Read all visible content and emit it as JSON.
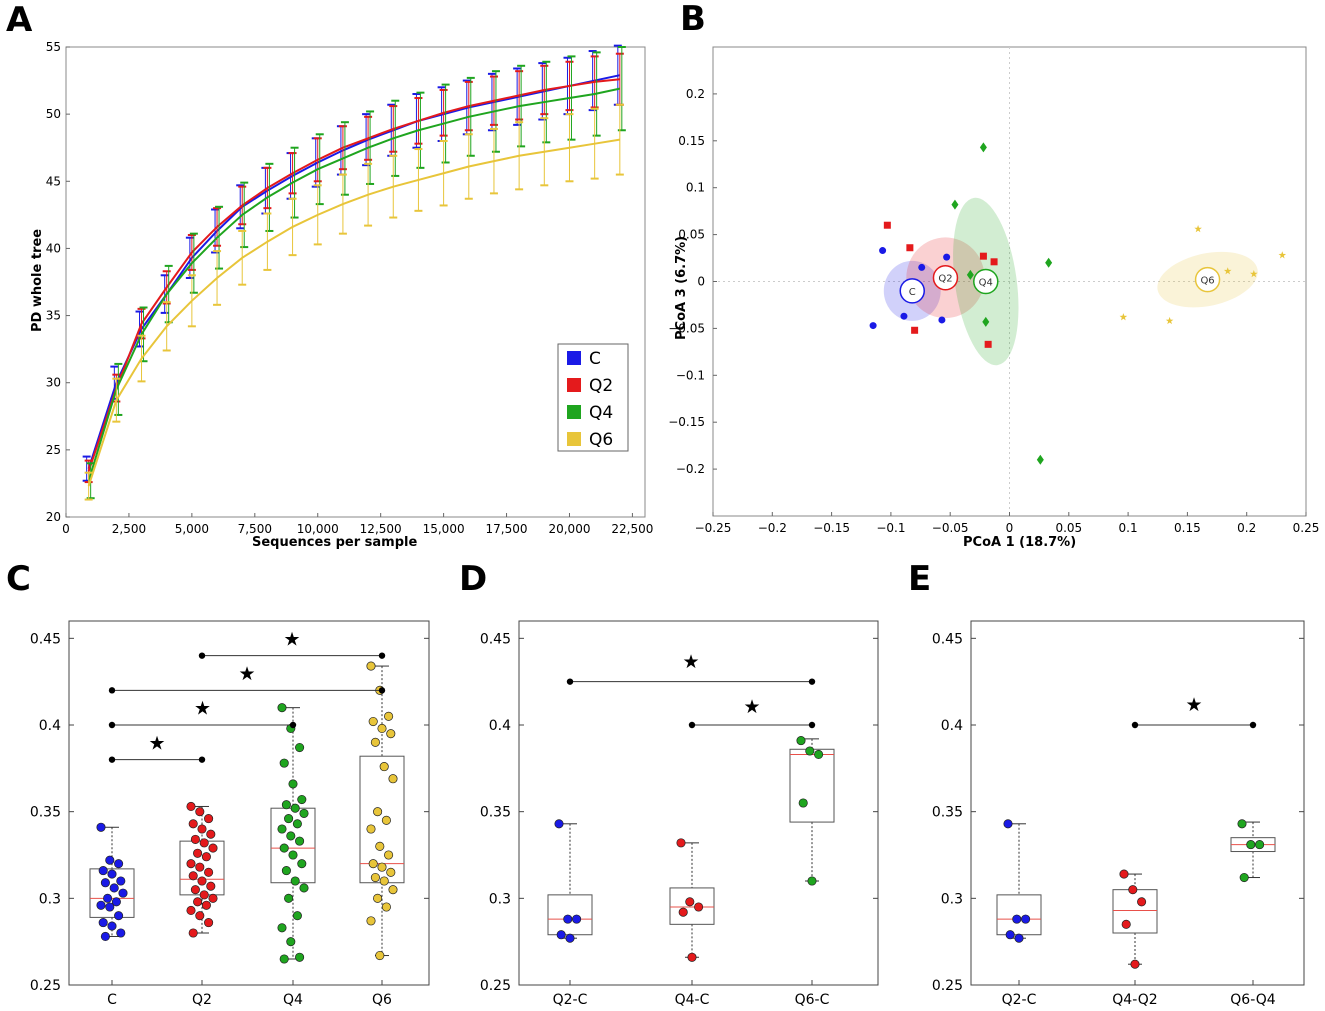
{
  "colors": {
    "C": "#1a1ae6",
    "Q2": "#e41a1c",
    "Q4": "#1fa51f",
    "Q6": "#e8c53a",
    "median": "#e8504a"
  },
  "panels": {
    "A": {
      "letter": "A",
      "chart_data": {
        "type": "line",
        "xlabel": "Sequences per sample",
        "ylabel": "PD whole tree",
        "xlim": [
          0,
          23000
        ],
        "ylim": [
          20,
          55
        ],
        "xticks": [
          0,
          2500,
          5000,
          7500,
          10000,
          12500,
          15000,
          17500,
          20000,
          22500
        ],
        "xtick_labels": [
          "0",
          "2,500",
          "5,000",
          "7,500",
          "10,000",
          "12,500",
          "15,000",
          "17,500",
          "20,000",
          "22,500"
        ],
        "yticks": [
          20,
          25,
          30,
          35,
          40,
          45,
          50,
          55
        ],
        "x": [
          900,
          2000,
          3000,
          4000,
          5000,
          6000,
          7000,
          8000,
          9000,
          10000,
          11000,
          12000,
          13000,
          14000,
          15000,
          16000,
          17000,
          18000,
          19000,
          20000,
          21000,
          22000
        ],
        "series": [
          {
            "name": "C",
            "values": [
              23.6,
              30.0,
              34.0,
              36.6,
              39.3,
              41.3,
              43.1,
              44.3,
              45.4,
              46.4,
              47.3,
              48.1,
              48.8,
              49.5,
              50.0,
              50.5,
              50.9,
              51.3,
              51.7,
              52.1,
              52.5,
              52.9
            ],
            "err": [
              0.9,
              1.2,
              1.3,
              1.4,
              1.5,
              1.6,
              1.6,
              1.7,
              1.7,
              1.8,
              1.8,
              1.9,
              1.9,
              2.0,
              2.0,
              2.0,
              2.1,
              2.1,
              2.1,
              2.1,
              2.2,
              2.2
            ]
          },
          {
            "name": "Q2",
            "values": [
              23.4,
              29.6,
              34.4,
              37.1,
              39.7,
              41.6,
              43.2,
              44.5,
              45.6,
              46.6,
              47.5,
              48.2,
              48.9,
              49.5,
              50.1,
              50.6,
              51.0,
              51.4,
              51.8,
              52.1,
              52.4,
              52.6
            ],
            "err": [
              0.8,
              1.0,
              1.1,
              1.2,
              1.3,
              1.4,
              1.4,
              1.5,
              1.5,
              1.6,
              1.6,
              1.6,
              1.7,
              1.7,
              1.7,
              1.8,
              1.8,
              1.8,
              1.8,
              1.8,
              1.9,
              1.9
            ]
          },
          {
            "name": "Q4",
            "values": [
              22.7,
              29.5,
              33.6,
              36.6,
              38.9,
              40.8,
              42.5,
              43.8,
              44.9,
              45.9,
              46.7,
              47.5,
              48.2,
              48.8,
              49.3,
              49.8,
              50.2,
              50.6,
              50.9,
              51.2,
              51.5,
              51.9
            ],
            "err": [
              1.3,
              1.9,
              2.0,
              2.1,
              2.2,
              2.3,
              2.4,
              2.5,
              2.6,
              2.6,
              2.7,
              2.7,
              2.8,
              2.8,
              2.9,
              2.9,
              3.0,
              3.0,
              3.0,
              3.1,
              3.1,
              3.1
            ]
          },
          {
            "name": "Q6",
            "values": [
              22.3,
              28.7,
              31.8,
              34.2,
              36.1,
              37.8,
              39.3,
              40.5,
              41.6,
              42.5,
              43.3,
              44.0,
              44.6,
              45.1,
              45.6,
              46.1,
              46.5,
              46.9,
              47.2,
              47.5,
              47.8,
              48.1
            ],
            "err": [
              1.0,
              1.6,
              1.7,
              1.8,
              1.9,
              2.0,
              2.0,
              2.1,
              2.1,
              2.2,
              2.2,
              2.3,
              2.3,
              2.3,
              2.4,
              2.4,
              2.4,
              2.5,
              2.5,
              2.5,
              2.6,
              2.6
            ]
          }
        ],
        "legend": [
          "C",
          "Q2",
          "Q4",
          "Q6"
        ],
        "legend_position": "center-right"
      }
    },
    "B": {
      "letter": "B",
      "chart_data": {
        "type": "scatter",
        "xlabel": "PCoA 1 (18.7%)",
        "ylabel": "PCoA 3 (6.7%)",
        "xlim": [
          -0.25,
          0.25
        ],
        "ylim": [
          -0.25,
          0.25
        ],
        "xticks": [
          -0.25,
          -0.2,
          -0.15,
          -0.1,
          -0.05,
          0,
          0.05,
          0.1,
          0.15,
          0.2,
          0.25
        ],
        "xtick_labels": [
          "−0.25",
          "−0.2",
          "−0.15",
          "−0.1",
          "−0.05",
          "0",
          "0.05",
          "0.1",
          "0.15",
          "0.2",
          "0.25"
        ],
        "yticks": [
          0.2,
          0.15,
          0.1,
          0.05,
          0,
          -0.05,
          -0.1,
          -0.15,
          -0.2
        ],
        "ytick_labels": [
          "0.2",
          "0.15",
          "0.1",
          "0.05",
          "0",
          "−0.05",
          "−0.1",
          "−0.15",
          "−0.2"
        ],
        "groups": [
          {
            "name": "C",
            "marker": "circle",
            "centroid": [
              -0.082,
              -0.01
            ],
            "label": "C",
            "ellipse": {
              "rx": 0.024,
              "ry": 0.032,
              "angle": 0
            },
            "points": [
              [
                -0.107,
                0.033
              ],
              [
                -0.074,
                0.015
              ],
              [
                -0.053,
                0.026
              ],
              [
                -0.115,
                -0.047
              ],
              [
                -0.089,
                -0.037
              ],
              [
                -0.057,
                -0.041
              ]
            ]
          },
          {
            "name": "Q2",
            "marker": "square",
            "centroid": [
              -0.054,
              0.004
            ],
            "label": "Q2",
            "ellipse": {
              "rx": 0.033,
              "ry": 0.043,
              "angle": 0
            },
            "points": [
              [
                -0.103,
                0.06
              ],
              [
                -0.084,
                0.036
              ],
              [
                -0.08,
                -0.052
              ],
              [
                -0.022,
                0.027
              ],
              [
                -0.013,
                0.021
              ],
              [
                -0.018,
                -0.067
              ]
            ]
          },
          {
            "name": "Q4",
            "marker": "diamond",
            "centroid": [
              -0.02,
              0.0
            ],
            "label": "Q4",
            "ellipse": {
              "rx": 0.026,
              "ry": 0.09,
              "angle": -8
            },
            "points": [
              [
                -0.022,
                0.143
              ],
              [
                -0.046,
                0.082
              ],
              [
                -0.033,
                0.007
              ],
              [
                0.033,
                0.02
              ],
              [
                -0.02,
                -0.043
              ],
              [
                0.026,
                -0.19
              ]
            ]
          },
          {
            "name": "Q6",
            "marker": "star",
            "centroid": [
              0.167,
              0.002
            ],
            "label": "Q6",
            "ellipse": {
              "rx": 0.043,
              "ry": 0.028,
              "angle": -12
            },
            "points": [
              [
                0.159,
                0.056
              ],
              [
                0.184,
                0.011
              ],
              [
                0.206,
                0.008
              ],
              [
                0.23,
                0.028
              ],
              [
                0.096,
                -0.038
              ],
              [
                0.135,
                -0.042
              ]
            ]
          }
        ]
      }
    },
    "C": {
      "letter": "C",
      "chart_data": {
        "type": "box",
        "ylim": [
          0.25,
          0.46
        ],
        "yticks": [
          0.25,
          0.3,
          0.35,
          0.4,
          0.45
        ],
        "ytick_labels": [
          "0.25",
          "0.3",
          "0.35",
          "0.4",
          "0.45"
        ],
        "categories": [
          "C",
          "Q2",
          "Q4",
          "Q6"
        ],
        "boxes": [
          {
            "color": "C",
            "q1": 0.289,
            "median": 0.3,
            "q3": 0.317,
            "low": 0.278,
            "high": 0.341
          },
          {
            "color": "Q2",
            "q1": 0.302,
            "median": 0.311,
            "q3": 0.333,
            "low": 0.28,
            "high": 0.353
          },
          {
            "color": "Q4",
            "q1": 0.309,
            "median": 0.329,
            "q3": 0.352,
            "low": 0.265,
            "high": 0.41
          },
          {
            "color": "Q6",
            "q1": 0.309,
            "median": 0.32,
            "q3": 0.382,
            "low": 0.267,
            "high": 0.434
          }
        ],
        "points": [
          [
            0.341,
            0.322,
            0.32,
            0.316,
            0.314,
            0.31,
            0.309,
            0.306,
            0.303,
            0.3,
            0.298,
            0.296,
            0.295,
            0.29,
            0.286,
            0.284,
            0.28,
            0.278
          ],
          [
            0.353,
            0.35,
            0.346,
            0.343,
            0.34,
            0.337,
            0.334,
            0.332,
            0.329,
            0.326,
            0.324,
            0.32,
            0.318,
            0.315,
            0.313,
            0.31,
            0.307,
            0.305,
            0.302,
            0.3,
            0.298,
            0.296,
            0.293,
            0.29,
            0.286,
            0.28
          ],
          [
            0.41,
            0.398,
            0.387,
            0.378,
            0.366,
            0.357,
            0.354,
            0.352,
            0.349,
            0.346,
            0.343,
            0.34,
            0.336,
            0.333,
            0.329,
            0.325,
            0.32,
            0.316,
            0.31,
            0.306,
            0.3,
            0.29,
            0.283,
            0.275,
            0.266,
            0.265
          ],
          [
            0.434,
            0.42,
            0.405,
            0.402,
            0.398,
            0.395,
            0.39,
            0.376,
            0.369,
            0.35,
            0.345,
            0.34,
            0.33,
            0.325,
            0.32,
            0.318,
            0.315,
            0.312,
            0.31,
            0.305,
            0.3,
            0.295,
            0.287,
            0.267
          ]
        ],
        "brackets": [
          {
            "from": 0,
            "to": 1,
            "y": 0.38,
            "star_y": 0.39
          },
          {
            "from": 0,
            "to": 2,
            "y": 0.4,
            "star_y": 0.41
          },
          {
            "from": 0,
            "to": 3,
            "y": 0.42,
            "star_y": 0.43
          },
          {
            "from": 1,
            "to": 3,
            "y": 0.44,
            "star_y": 0.45
          }
        ],
        "star_symbol": "★"
      }
    },
    "D": {
      "letter": "D",
      "chart_data": {
        "type": "box",
        "ylim": [
          0.25,
          0.46
        ],
        "yticks": [
          0.25,
          0.3,
          0.35,
          0.4,
          0.45
        ],
        "ytick_labels": [
          "0.25",
          "0.3",
          "0.35",
          "0.4",
          "0.45"
        ],
        "categories": [
          "Q2-C",
          "Q4-C",
          "Q6-C"
        ],
        "boxes": [
          {
            "color": "C",
            "q1": 0.279,
            "median": 0.288,
            "q3": 0.302,
            "low": 0.277,
            "high": 0.343
          },
          {
            "color": "Q2",
            "q1": 0.285,
            "median": 0.295,
            "q3": 0.306,
            "low": 0.266,
            "high": 0.332
          },
          {
            "color": "Q4",
            "q1": 0.344,
            "median": 0.383,
            "q3": 0.386,
            "low": 0.31,
            "high": 0.392
          }
        ],
        "points": [
          [
            0.343,
            0.288,
            0.288,
            0.279,
            0.277
          ],
          [
            0.332,
            0.298,
            0.295,
            0.292,
            0.266
          ],
          [
            0.391,
            0.385,
            0.383,
            0.355,
            0.31
          ]
        ],
        "brackets": [
          {
            "from": 0,
            "to": 2,
            "y": 0.425,
            "star_y": 0.437
          },
          {
            "from": 1,
            "to": 2,
            "y": 0.4,
            "star_y": 0.411
          }
        ],
        "star_symbol": "★"
      }
    },
    "E": {
      "letter": "E",
      "chart_data": {
        "type": "box",
        "ylim": [
          0.25,
          0.46
        ],
        "yticks": [
          0.25,
          0.3,
          0.35,
          0.4,
          0.45
        ],
        "ytick_labels": [
          "0.25",
          "0.3",
          "0.35",
          "0.4",
          "0.45"
        ],
        "categories": [
          "Q2-C",
          "Q4-Q2",
          "Q6-Q4"
        ],
        "boxes": [
          {
            "color": "C",
            "q1": 0.279,
            "median": 0.288,
            "q3": 0.302,
            "low": 0.277,
            "high": 0.343
          },
          {
            "color": "Q2",
            "q1": 0.28,
            "median": 0.293,
            "q3": 0.305,
            "low": 0.262,
            "high": 0.314
          },
          {
            "color": "Q4",
            "q1": 0.327,
            "median": 0.331,
            "q3": 0.335,
            "low": 0.312,
            "high": 0.344
          }
        ],
        "points": [
          [
            0.343,
            0.288,
            0.288,
            0.279,
            0.277
          ],
          [
            0.314,
            0.305,
            0.298,
            0.285,
            0.262
          ],
          [
            0.343,
            0.331,
            0.331,
            0.312
          ]
        ],
        "brackets": [
          {
            "from": 1,
            "to": 2,
            "y": 0.4,
            "star_y": 0.412
          }
        ],
        "star_symbol": "★"
      }
    }
  }
}
